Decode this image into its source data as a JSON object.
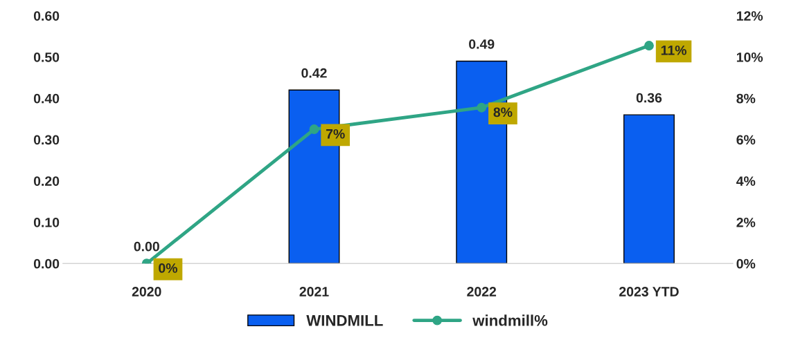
{
  "chart_data": {
    "type": "bar",
    "categories": [
      "2020",
      "2021",
      "2022",
      "2023 YTD"
    ],
    "series": [
      {
        "name": "WINDMILL",
        "color": "#0a5ff0",
        "values": [
          0.0,
          0.42,
          0.49,
          0.36
        ],
        "value_labels": [
          "0.00",
          "0.42",
          "0.49",
          "0.36"
        ]
      },
      {
        "name": "windmill%",
        "type": "line",
        "axis": "y2",
        "color": "#2fa585",
        "marker": "circle",
        "values": [
          0.0,
          6.5,
          7.55,
          10.55
        ],
        "value_labels": [
          "0%",
          "7%",
          "8%",
          "11%"
        ]
      }
    ],
    "ylim": [
      0,
      0.6
    ],
    "yticks": [
      {
        "value": 0,
        "label": "0.00"
      },
      {
        "value": 0.1,
        "label": "0.10"
      },
      {
        "value": 0.2,
        "label": "0.20"
      },
      {
        "value": 0.3,
        "label": "0.30"
      },
      {
        "value": 0.4,
        "label": "0.40"
      },
      {
        "value": 0.5,
        "label": "0.50"
      },
      {
        "value": 0.6,
        "label": "0.60"
      }
    ],
    "y2lim": [
      0,
      12
    ],
    "y2ticks": [
      {
        "value": 0,
        "label": "0%"
      },
      {
        "value": 2,
        "label": "2%"
      },
      {
        "value": 4,
        "label": "4%"
      },
      {
        "value": 6,
        "label": "6%"
      },
      {
        "value": 8,
        "label": "8%"
      },
      {
        "value": 10,
        "label": "10%"
      },
      {
        "value": 12,
        "label": "12%"
      }
    ],
    "grid": false,
    "legend": "bottom"
  }
}
